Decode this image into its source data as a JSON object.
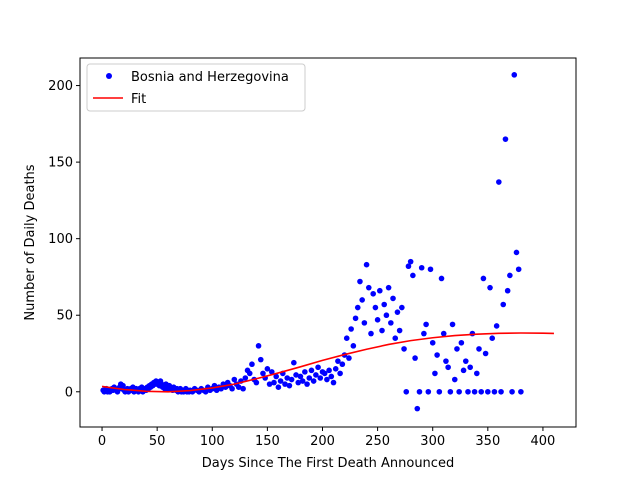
{
  "chart_data": {
    "type": "scatter",
    "title": "",
    "xlabel": "Days Since The First Death Announced",
    "ylabel": "Number of Daily Deaths",
    "xlim": [
      -20,
      430
    ],
    "ylim": [
      -23,
      218
    ],
    "xticks": [
      0,
      50,
      100,
      150,
      200,
      250,
      300,
      350,
      400
    ],
    "yticks": [
      0,
      50,
      100,
      150,
      200
    ],
    "grid": false,
    "legend": {
      "placement": "top-left",
      "entries": [
        "Bosnia and Herzegovina",
        "Fit"
      ]
    },
    "series": [
      {
        "name": "Bosnia and Herzegovina",
        "kind": "scatter",
        "color": "#0000ff",
        "points": [
          [
            1,
            1
          ],
          [
            2,
            0
          ],
          [
            3,
            1
          ],
          [
            4,
            2
          ],
          [
            5,
            0
          ],
          [
            6,
            1
          ],
          [
            7,
            0
          ],
          [
            8,
            1
          ],
          [
            9,
            2
          ],
          [
            10,
            1
          ],
          [
            11,
            3
          ],
          [
            12,
            2
          ],
          [
            13,
            1
          ],
          [
            14,
            0
          ],
          [
            15,
            2
          ],
          [
            16,
            3
          ],
          [
            17,
            5
          ],
          [
            18,
            2
          ],
          [
            19,
            4
          ],
          [
            20,
            1
          ],
          [
            21,
            0
          ],
          [
            22,
            1
          ],
          [
            23,
            2
          ],
          [
            24,
            0
          ],
          [
            25,
            1
          ],
          [
            26,
            2
          ],
          [
            27,
            1
          ],
          [
            28,
            3
          ],
          [
            29,
            0
          ],
          [
            30,
            1
          ],
          [
            31,
            2
          ],
          [
            32,
            1
          ],
          [
            33,
            0
          ],
          [
            34,
            2
          ],
          [
            35,
            1
          ],
          [
            36,
            3
          ],
          [
            37,
            0
          ],
          [
            38,
            1
          ],
          [
            39,
            2
          ],
          [
            40,
            1
          ],
          [
            41,
            3
          ],
          [
            42,
            2
          ],
          [
            43,
            4
          ],
          [
            44,
            3
          ],
          [
            45,
            5
          ],
          [
            46,
            4
          ],
          [
            47,
            6
          ],
          [
            48,
            5
          ],
          [
            49,
            7
          ],
          [
            50,
            5
          ],
          [
            51,
            6
          ],
          [
            52,
            4
          ],
          [
            53,
            7
          ],
          [
            54,
            5
          ],
          [
            55,
            3
          ],
          [
            56,
            4
          ],
          [
            57,
            2
          ],
          [
            58,
            5
          ],
          [
            59,
            3
          ],
          [
            60,
            2
          ],
          [
            61,
            4
          ],
          [
            62,
            3
          ],
          [
            63,
            2
          ],
          [
            64,
            1
          ],
          [
            65,
            3
          ],
          [
            66,
            2
          ],
          [
            67,
            1
          ],
          [
            68,
            2
          ],
          [
            69,
            0
          ],
          [
            70,
            1
          ],
          [
            71,
            2
          ],
          [
            72,
            0
          ],
          [
            73,
            1
          ],
          [
            74,
            0
          ],
          [
            75,
            1
          ],
          [
            76,
            2
          ],
          [
            77,
            0
          ],
          [
            78,
            1
          ],
          [
            79,
            0
          ],
          [
            80,
            1
          ],
          [
            82,
            0
          ],
          [
            84,
            2
          ],
          [
            86,
            1
          ],
          [
            88,
            0
          ],
          [
            90,
            2
          ],
          [
            92,
            1
          ],
          [
            94,
            0
          ],
          [
            96,
            3
          ],
          [
            98,
            1
          ],
          [
            100,
            2
          ],
          [
            102,
            4
          ],
          [
            104,
            1
          ],
          [
            106,
            3
          ],
          [
            108,
            2
          ],
          [
            110,
            5
          ],
          [
            112,
            3
          ],
          [
            114,
            6
          ],
          [
            116,
            4
          ],
          [
            118,
            2
          ],
          [
            120,
            8
          ],
          [
            122,
            5
          ],
          [
            124,
            3
          ],
          [
            126,
            7
          ],
          [
            128,
            2
          ],
          [
            130,
            9
          ],
          [
            132,
            14
          ],
          [
            134,
            12
          ],
          [
            136,
            18
          ],
          [
            138,
            8
          ],
          [
            140,
            6
          ],
          [
            142,
            30
          ],
          [
            144,
            21
          ],
          [
            146,
            12
          ],
          [
            148,
            9
          ],
          [
            150,
            15
          ],
          [
            152,
            5
          ],
          [
            154,
            13
          ],
          [
            156,
            6
          ],
          [
            158,
            10
          ],
          [
            160,
            3
          ],
          [
            162,
            7
          ],
          [
            164,
            12
          ],
          [
            166,
            5
          ],
          [
            168,
            9
          ],
          [
            170,
            4
          ],
          [
            172,
            8
          ],
          [
            174,
            19
          ],
          [
            176,
            11
          ],
          [
            178,
            6
          ],
          [
            180,
            10
          ],
          [
            182,
            7
          ],
          [
            184,
            13
          ],
          [
            186,
            5
          ],
          [
            188,
            9
          ],
          [
            190,
            14
          ],
          [
            192,
            7
          ],
          [
            194,
            11
          ],
          [
            196,
            16
          ],
          [
            198,
            9
          ],
          [
            200,
            13
          ],
          [
            202,
            12
          ],
          [
            204,
            8
          ],
          [
            206,
            14
          ],
          [
            208,
            10
          ],
          [
            210,
            6
          ],
          [
            212,
            15
          ],
          [
            214,
            20
          ],
          [
            216,
            12
          ],
          [
            218,
            18
          ],
          [
            220,
            24
          ],
          [
            222,
            35
          ],
          [
            224,
            22
          ],
          [
            226,
            41
          ],
          [
            228,
            30
          ],
          [
            230,
            48
          ],
          [
            232,
            55
          ],
          [
            234,
            72
          ],
          [
            236,
            60
          ],
          [
            238,
            45
          ],
          [
            240,
            83
          ],
          [
            242,
            68
          ],
          [
            244,
            38
          ],
          [
            246,
            64
          ],
          [
            248,
            55
          ],
          [
            250,
            47
          ],
          [
            252,
            66
          ],
          [
            254,
            40
          ],
          [
            256,
            57
          ],
          [
            258,
            50
          ],
          [
            260,
            68
          ],
          [
            262,
            45
          ],
          [
            264,
            61
          ],
          [
            266,
            35
          ],
          [
            268,
            52
          ],
          [
            270,
            40
          ],
          [
            272,
            55
          ],
          [
            274,
            28
          ],
          [
            276,
            0
          ],
          [
            278,
            82
          ],
          [
            280,
            85
          ],
          [
            282,
            76
          ],
          [
            284,
            22
          ],
          [
            286,
            -11
          ],
          [
            288,
            0
          ],
          [
            290,
            81
          ],
          [
            292,
            38
          ],
          [
            294,
            44
          ],
          [
            296,
            0
          ],
          [
            298,
            80
          ],
          [
            300,
            32
          ],
          [
            302,
            12
          ],
          [
            304,
            24
          ],
          [
            306,
            0
          ],
          [
            308,
            74
          ],
          [
            310,
            38
          ],
          [
            312,
            20
          ],
          [
            314,
            16
          ],
          [
            316,
            0
          ],
          [
            318,
            44
          ],
          [
            320,
            8
          ],
          [
            322,
            28
          ],
          [
            324,
            0
          ],
          [
            326,
            32
          ],
          [
            328,
            14
          ],
          [
            330,
            20
          ],
          [
            332,
            0
          ],
          [
            334,
            16
          ],
          [
            336,
            38
          ],
          [
            338,
            0
          ],
          [
            340,
            12
          ],
          [
            342,
            28
          ],
          [
            344,
            0
          ],
          [
            346,
            74
          ],
          [
            348,
            25
          ],
          [
            350,
            0
          ],
          [
            352,
            68
          ],
          [
            354,
            35
          ],
          [
            356,
            0
          ],
          [
            358,
            43
          ],
          [
            360,
            137
          ],
          [
            362,
            0
          ],
          [
            364,
            57
          ],
          [
            366,
            165
          ],
          [
            368,
            66
          ],
          [
            370,
            76
          ],
          [
            372,
            0
          ],
          [
            374,
            207
          ],
          [
            376,
            91
          ],
          [
            378,
            80
          ],
          [
            380,
            0
          ]
        ]
      },
      {
        "name": "Fit",
        "kind": "line",
        "color": "#ff0000",
        "x": [
          0,
          20,
          40,
          60,
          80,
          100,
          120,
          140,
          160,
          180,
          200,
          220,
          240,
          260,
          280,
          300,
          320,
          340,
          360,
          380,
          400,
          410
        ],
        "values": [
          3.5,
          1.5,
          0.3,
          0.0,
          0.8,
          2.5,
          5.0,
          8.5,
          12.3,
          16.3,
          20.5,
          24.3,
          27.8,
          30.9,
          33.4,
          35.3,
          36.7,
          37.6,
          38.2,
          38.4,
          38.3,
          38.1
        ]
      }
    ]
  }
}
